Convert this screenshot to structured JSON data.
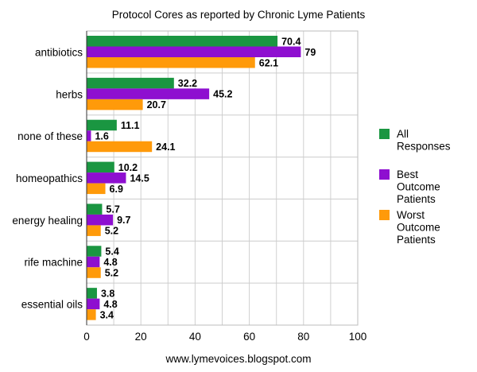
{
  "chart_data": {
    "type": "bar",
    "orientation": "horizontal",
    "title": "Protocol Cores as reported by Chronic Lyme Patients",
    "xlabel": "www.lymevoices.blogspot.com",
    "ylabel": "",
    "xlim": [
      0,
      100
    ],
    "x_ticks": [
      "0",
      "20",
      "40",
      "60",
      "80",
      "100"
    ],
    "grid": true,
    "legend_position": "right",
    "categories": [
      "antibiotics",
      "herbs",
      "none of these",
      "homeopathics",
      "energy healing",
      "rife machine",
      "essential oils"
    ],
    "series": [
      {
        "name": "All Responses",
        "color": "#1a9641",
        "values": [
          70.4,
          32.2,
          11.1,
          10.2,
          5.7,
          5.4,
          3.8
        ],
        "labels": [
          "70.4",
          "32.2",
          "11.1",
          "10.2",
          "5.7",
          "5.4",
          "3.8"
        ]
      },
      {
        "name": "Best Outcome Patients",
        "color": "#8e0fd0",
        "values": [
          79,
          45.2,
          1.6,
          14.5,
          9.7,
          4.8,
          4.8
        ],
        "labels": [
          "79",
          "45.2",
          "1.6",
          "14.5",
          "9.7",
          "4.8",
          "4.8"
        ]
      },
      {
        "name": "Worst Outcome Patients",
        "color": "#ff9a0a",
        "values": [
          62.1,
          20.7,
          24.1,
          6.9,
          5.2,
          5.2,
          3.4
        ],
        "labels": [
          "62.1",
          "20.7",
          "24.1",
          "6.9",
          "5.2",
          "5.2",
          "3.4"
        ]
      }
    ],
    "legend_lines": [
      [
        "All",
        "Responses"
      ],
      [
        "Best",
        "Outcome",
        "Patients"
      ],
      [
        "Worst",
        "Outcome",
        "Patients"
      ]
    ]
  }
}
